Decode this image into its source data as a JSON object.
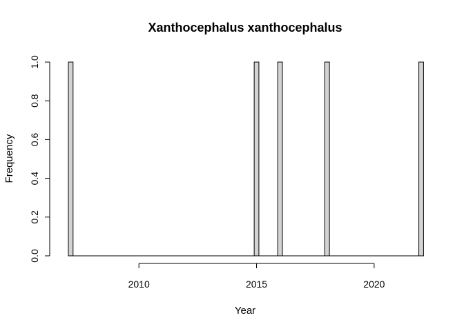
{
  "chart_data": {
    "type": "bar",
    "title": "Xanthocephalus xanthocephalus",
    "xlabel": "Year",
    "ylabel": "Frequency",
    "bin_width": 0.2,
    "bars": [
      {
        "x": 2007.0,
        "value": 1.0
      },
      {
        "x": 2014.9,
        "value": 1.0
      },
      {
        "x": 2015.9,
        "value": 1.0
      },
      {
        "x": 2017.9,
        "value": 1.0
      },
      {
        "x": 2021.9,
        "value": 1.0
      }
    ],
    "xlim": [
      2007.0,
      2022.0
    ],
    "ylim": [
      0.0,
      1.0
    ],
    "x_ticks": [
      "2010",
      "2015",
      "2020"
    ],
    "y_ticks": [
      "0.0",
      "0.2",
      "0.4",
      "0.6",
      "0.8",
      "1.0"
    ],
    "bar_fill": "#d3d3d3",
    "bar_stroke": "#000000",
    "grid": false,
    "legend": "none"
  }
}
